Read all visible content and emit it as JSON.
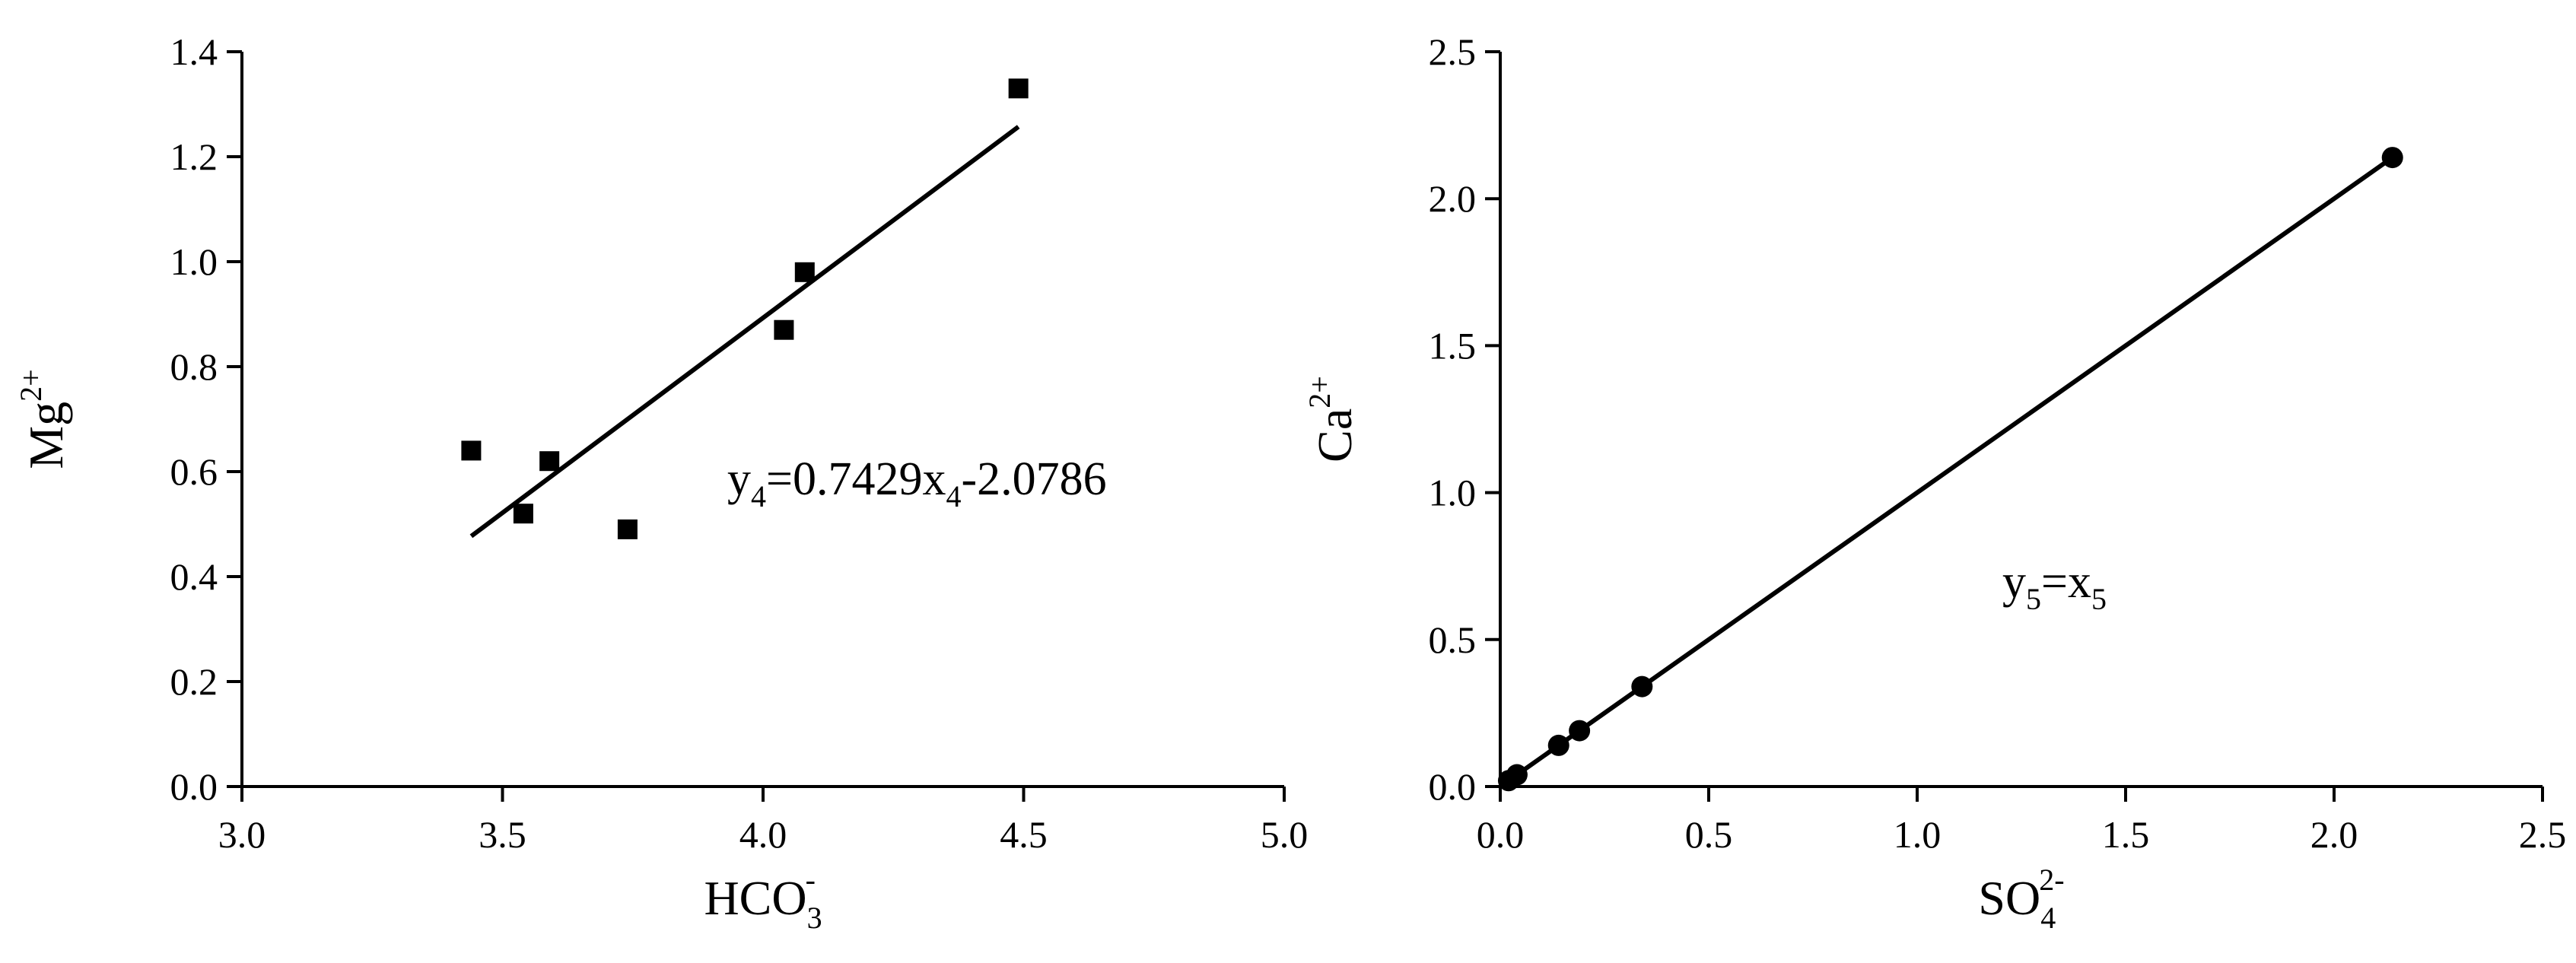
{
  "chart_data": [
    {
      "type": "scatter",
      "xlabel": "HCO",
      "xlabel_sub": "3",
      "xlabel_sup": "-",
      "ylabel": "Mg",
      "ylabel_sup": "2+",
      "xlim": [
        3.0,
        5.0
      ],
      "ylim": [
        0.0,
        1.4
      ],
      "xticks": [
        "3.0",
        "3.5",
        "4.0",
        "4.5",
        "5.0"
      ],
      "yticks": [
        "0.0",
        "0.2",
        "0.4",
        "0.6",
        "0.8",
        "1.0",
        "1.2",
        "1.4"
      ],
      "grid": false,
      "marker": "square",
      "series": [
        {
          "points": [
            {
              "x": 3.44,
              "y": 0.64
            },
            {
              "x": 3.54,
              "y": 0.52
            },
            {
              "x": 3.59,
              "y": 0.62
            },
            {
              "x": 3.74,
              "y": 0.49
            },
            {
              "x": 4.04,
              "y": 0.87
            },
            {
              "x": 4.08,
              "y": 0.98
            },
            {
              "x": 4.49,
              "y": 1.33
            }
          ]
        }
      ],
      "fit_line": {
        "slope": 0.7429,
        "intercept": -2.0786,
        "x_range": [
          3.44,
          4.49
        ]
      },
      "annotation": {
        "parts": [
          "y",
          "4",
          "=0.7429x",
          "4",
          "-2.0786"
        ]
      }
    },
    {
      "type": "scatter",
      "xlabel": "SO",
      "xlabel_sub": "4",
      "xlabel_sup": "2-",
      "ylabel": "Ca",
      "ylabel_sup": "2+",
      "xlim": [
        0.0,
        2.5
      ],
      "ylim": [
        0.0,
        2.5
      ],
      "xticks": [
        "0.0",
        "0.5",
        "1.0",
        "1.5",
        "2.0",
        "2.5"
      ],
      "yticks": [
        "0.0",
        "0.5",
        "1.0",
        "1.5",
        "2.0",
        "2.5"
      ],
      "grid": false,
      "marker": "circle",
      "series": [
        {
          "points": [
            {
              "x": 0.02,
              "y": 0.02
            },
            {
              "x": 0.04,
              "y": 0.04
            },
            {
              "x": 0.14,
              "y": 0.14
            },
            {
              "x": 0.19,
              "y": 0.19
            },
            {
              "x": 0.34,
              "y": 0.34
            },
            {
              "x": 2.14,
              "y": 2.14
            }
          ]
        }
      ],
      "fit_line": {
        "slope": 1.0,
        "intercept": 0.0,
        "x_range": [
          0.0,
          2.14
        ]
      },
      "annotation": {
        "parts": [
          "y",
          "5",
          "=x",
          "5",
          ""
        ]
      }
    }
  ]
}
